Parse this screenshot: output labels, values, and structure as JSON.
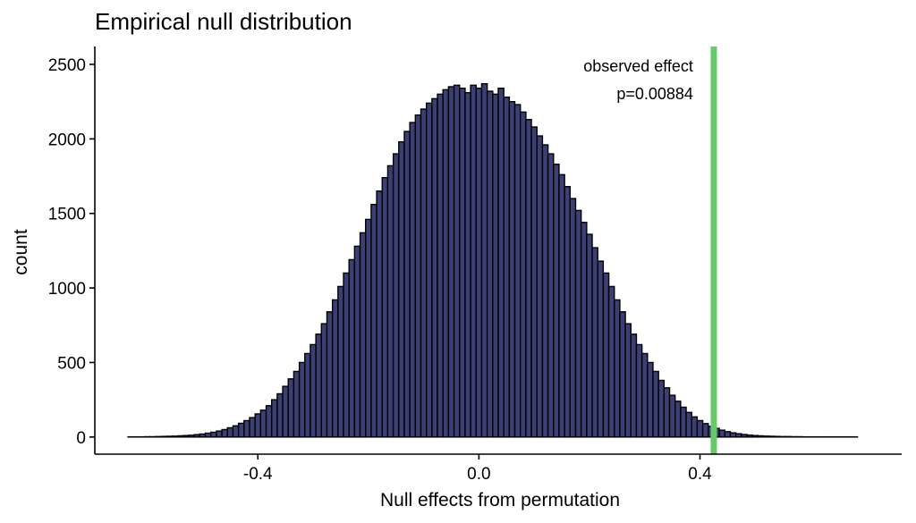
{
  "chart_data": {
    "type": "bar",
    "title": "Empirical null distribution",
    "xlabel": "Null effects from permutation",
    "ylabel": "count",
    "xlim": [
      -0.695,
      0.765
    ],
    "ylim": [
      -115,
      2620
    ],
    "xticks": [
      -0.4,
      0.0,
      0.4
    ],
    "xtick_labels": [
      "-0.4",
      "0.0",
      "0.4"
    ],
    "yticks": [
      0,
      500,
      1000,
      1500,
      2000,
      2500
    ],
    "ytick_labels": [
      "0",
      "500",
      "1000",
      "1500",
      "2000",
      "2500"
    ],
    "grid": false,
    "legend": "none",
    "bar_color": "#3b3f73",
    "bar_edge_color": "#000000",
    "observed_effect": {
      "x": 0.425,
      "color": "#66c96a",
      "label": "observed effect",
      "p_label": "p=0.00884"
    },
    "histogram": {
      "bin_centers": [
        -0.63,
        -0.62,
        -0.61,
        -0.6,
        -0.59,
        -0.58,
        -0.57,
        -0.56,
        -0.55,
        -0.54,
        -0.53,
        -0.52,
        -0.51,
        -0.5,
        -0.49,
        -0.48,
        -0.47,
        -0.46,
        -0.45,
        -0.44,
        -0.43,
        -0.42,
        -0.41,
        -0.4,
        -0.39,
        -0.38,
        -0.37,
        -0.36,
        -0.35,
        -0.34,
        -0.33,
        -0.32,
        -0.31,
        -0.3,
        -0.29,
        -0.28,
        -0.27,
        -0.26,
        -0.25,
        -0.24,
        -0.23,
        -0.22,
        -0.21,
        -0.2,
        -0.19,
        -0.18,
        -0.17,
        -0.16,
        -0.15,
        -0.14,
        -0.13,
        -0.12,
        -0.11,
        -0.1,
        -0.09,
        -0.08,
        -0.07,
        -0.06,
        -0.05,
        -0.04,
        -0.03,
        -0.02,
        -0.01,
        0.0,
        0.01,
        0.02,
        0.03,
        0.04,
        0.05,
        0.06,
        0.07,
        0.08,
        0.09,
        0.1,
        0.11,
        0.12,
        0.13,
        0.14,
        0.15,
        0.16,
        0.17,
        0.18,
        0.19,
        0.2,
        0.21,
        0.22,
        0.23,
        0.24,
        0.25,
        0.26,
        0.27,
        0.28,
        0.29,
        0.3,
        0.31,
        0.32,
        0.33,
        0.34,
        0.35,
        0.36,
        0.37,
        0.38,
        0.39,
        0.4,
        0.41,
        0.42,
        0.43,
        0.44,
        0.45,
        0.46,
        0.47,
        0.48,
        0.49,
        0.5,
        0.51,
        0.52,
        0.53,
        0.54,
        0.55,
        0.56,
        0.57,
        0.58,
        0.59,
        0.6,
        0.61,
        0.62,
        0.63,
        0.64,
        0.65,
        0.66,
        0.67,
        0.68,
        0.69,
        0.7
      ],
      "counts": [
        1,
        1,
        1,
        2,
        2,
        3,
        4,
        5,
        6,
        8,
        10,
        12,
        16,
        20,
        26,
        32,
        40,
        50,
        62,
        75,
        92,
        110,
        130,
        155,
        180,
        210,
        250,
        290,
        340,
        390,
        440,
        500,
        560,
        620,
        690,
        760,
        840,
        920,
        1010,
        1100,
        1190,
        1280,
        1370,
        1460,
        1560,
        1650,
        1740,
        1820,
        1900,
        1980,
        2050,
        2110,
        2160,
        2200,
        2240,
        2270,
        2300,
        2330,
        2350,
        2360,
        2340,
        2310,
        2360,
        2340,
        2370,
        2320,
        2300,
        2340,
        2280,
        2250,
        2230,
        2180,
        2130,
        2080,
        2020,
        1960,
        1900,
        1830,
        1760,
        1680,
        1600,
        1520,
        1440,
        1360,
        1270,
        1180,
        1100,
        1010,
        920,
        840,
        760,
        690,
        620,
        560,
        500,
        440,
        380,
        330,
        280,
        240,
        200,
        165,
        135,
        110,
        90,
        72,
        58,
        46,
        36,
        28,
        22,
        17,
        13,
        10,
        8,
        6,
        5,
        4,
        3,
        3,
        2,
        2,
        1,
        1,
        1,
        1,
        1,
        1,
        1,
        1,
        1,
        1
      ]
    }
  }
}
